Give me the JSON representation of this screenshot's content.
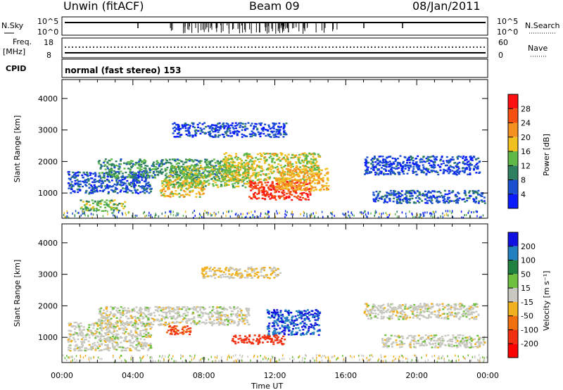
{
  "header": {
    "station": "Unwin (fitACF)",
    "beam": "Beam 09",
    "date": "08/Jan/2011"
  },
  "panels": {
    "nsky": {
      "left_label": "N.Sky",
      "right_label": "N.Search",
      "left_ticks": [
        "10^5",
        "10^0"
      ],
      "right_ticks": [
        "10^5",
        "10^0"
      ]
    },
    "freq": {
      "left_label_1": "Freq.",
      "left_label_2": "[MHz]",
      "left_ticks": [
        "18",
        "8"
      ],
      "right_label": "Nave",
      "right_ticks": [
        "60",
        "0"
      ]
    },
    "cpid": {
      "label": "CPID",
      "text": "normal (fast stereo) 153"
    }
  },
  "colorbars": {
    "power": {
      "label": "Power [dB]",
      "ticks": [
        "4",
        "8",
        "12",
        "16",
        "20",
        "24",
        "28"
      ],
      "colors": [
        "#0a1cff",
        "#1a4fd0",
        "#2e8060",
        "#5fb848",
        "#f0c020",
        "#f59020",
        "#f55010",
        "#ff1010"
      ]
    },
    "velocity": {
      "label": "Velocity [m s⁻¹]",
      "ticks": [
        "200",
        "100",
        "50",
        "15",
        "-15",
        "-50",
        "-100",
        "-200"
      ],
      "colors": [
        "#1010e0",
        "#2080c0",
        "#208040",
        "#70c040",
        "#c8c8c0",
        "#f0b020",
        "#f07010",
        "#f03010",
        "#ff0000"
      ]
    }
  },
  "chart_data": [
    {
      "type": "heatmap",
      "name": "power",
      "ylabel": "Slant Range [km]",
      "y_ticks": [
        "1000",
        "2000",
        "3000",
        "4000"
      ],
      "ylim": [
        200,
        4600
      ],
      "x_ticks": [
        "00:00",
        "04:00",
        "08:00",
        "12:00",
        "16:00",
        "20:00",
        "00:00"
      ],
      "xlim_hours": [
        0,
        24
      ],
      "regions": [
        {
          "x0": 0.3,
          "x1": 5.0,
          "y0": 1000,
          "y1": 1700,
          "v": 6
        },
        {
          "x0": 1.0,
          "x1": 3.5,
          "y0": 450,
          "y1": 800,
          "v": 14
        },
        {
          "x0": 2.0,
          "x1": 9.0,
          "y0": 1500,
          "y1": 2100,
          "v": 11
        },
        {
          "x0": 5.5,
          "x1": 8.0,
          "y0": 900,
          "y1": 1500,
          "v": 18
        },
        {
          "x0": 6.0,
          "x1": 10.5,
          "y0": 1200,
          "y1": 1900,
          "v": 15
        },
        {
          "x0": 9.0,
          "x1": 14.5,
          "y0": 1400,
          "y1": 2300,
          "v": 17
        },
        {
          "x0": 10.5,
          "x1": 14.0,
          "y0": 800,
          "y1": 1400,
          "v": 28
        },
        {
          "x0": 12.0,
          "x1": 15.0,
          "y0": 1100,
          "y1": 1800,
          "v": 20
        },
        {
          "x0": 6.2,
          "x1": 12.6,
          "y0": 2800,
          "y1": 3250,
          "v": 5
        },
        {
          "x0": 17.0,
          "x1": 23.5,
          "y0": 1600,
          "y1": 2200,
          "v": 5
        },
        {
          "x0": 17.5,
          "x1": 23.8,
          "y0": 700,
          "y1": 1100,
          "v": 6
        }
      ]
    },
    {
      "type": "heatmap",
      "name": "velocity",
      "ylabel": "Slant Range [km]",
      "y_ticks": [
        "1000",
        "2000",
        "3000",
        "4000"
      ],
      "ylim": [
        200,
        4600
      ],
      "x_ticks": [
        "00:00",
        "04:00",
        "08:00",
        "12:00",
        "16:00",
        "20:00",
        "00:00"
      ],
      "xlim_hours": [
        0,
        24
      ],
      "xlabel": "Time UT",
      "regions": [
        {
          "x0": 0.3,
          "x1": 5.0,
          "y0": 600,
          "y1": 1500,
          "v": 0
        },
        {
          "x0": 2.0,
          "x1": 10.5,
          "y0": 1400,
          "y1": 2000,
          "v": 0
        },
        {
          "x0": 5.8,
          "x1": 7.2,
          "y0": 1100,
          "y1": 1400,
          "v": -100
        },
        {
          "x0": 9.5,
          "x1": 12.5,
          "y0": 800,
          "y1": 1100,
          "v": -150
        },
        {
          "x0": 11.5,
          "x1": 14.5,
          "y0": 1100,
          "y1": 1900,
          "v": 200
        },
        {
          "x0": 7.8,
          "x1": 12.3,
          "y0": 2900,
          "y1": 3250,
          "v": -20
        },
        {
          "x0": 17.0,
          "x1": 23.5,
          "y0": 1600,
          "y1": 2100,
          "v": 0
        },
        {
          "x0": 18.0,
          "x1": 23.8,
          "y0": 700,
          "y1": 1100,
          "v": 0
        }
      ]
    }
  ]
}
